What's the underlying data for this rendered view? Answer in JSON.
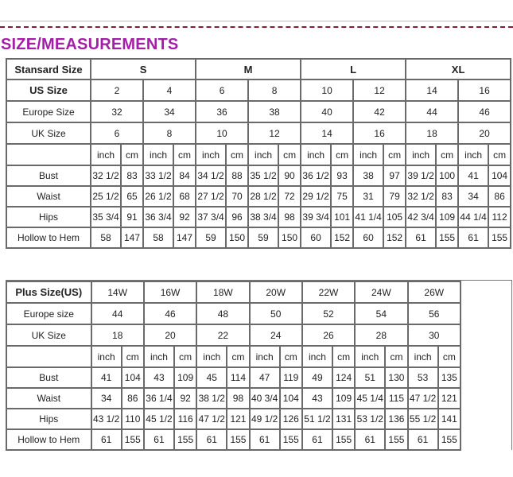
{
  "title": "SIZE/MEASUREMENTS",
  "colors": {
    "title": "#a31fa8",
    "dash_rule": "#8a1a3a",
    "border": "#6a6a6a"
  },
  "standard_table": {
    "header_label": "Stansard Size",
    "groups": [
      "S",
      "M",
      "L",
      "XL"
    ],
    "rows": [
      {
        "label": "US Size",
        "values": [
          "2",
          "4",
          "6",
          "8",
          "10",
          "12",
          "14",
          "16"
        ]
      },
      {
        "label": "Europe Size",
        "values": [
          "32",
          "34",
          "36",
          "38",
          "40",
          "42",
          "44",
          "46"
        ]
      },
      {
        "label": "UK Size",
        "values": [
          "6",
          "8",
          "10",
          "12",
          "14",
          "16",
          "18",
          "20"
        ]
      }
    ],
    "units": [
      "inch",
      "cm"
    ],
    "measurements": [
      {
        "label": "Bust",
        "values": [
          "32 1/2",
          "83",
          "33 1/2",
          "84",
          "34 1/2",
          "88",
          "35 1/2",
          "90",
          "36 1/2",
          "93",
          "38",
          "97",
          "39 1/2",
          "100",
          "41",
          "104"
        ]
      },
      {
        "label": "Waist",
        "values": [
          "25 1/2",
          "65",
          "26 1/2",
          "68",
          "27 1/2",
          "70",
          "28 1/2",
          "72",
          "29 1/2",
          "75",
          "31",
          "79",
          "32 1/2",
          "83",
          "34",
          "86"
        ]
      },
      {
        "label": "Hips",
        "values": [
          "35 3/4",
          "91",
          "36 3/4",
          "92",
          "37 3/4",
          "96",
          "38 3/4",
          "98",
          "39 3/4",
          "101",
          "41 1/4",
          "105",
          "42 3/4",
          "109",
          "44 1/4",
          "112"
        ]
      },
      {
        "label": "Hollow to Hem",
        "values": [
          "58",
          "147",
          "58",
          "147",
          "59",
          "150",
          "59",
          "150",
          "60",
          "152",
          "60",
          "152",
          "61",
          "155",
          "61",
          "155"
        ]
      }
    ]
  },
  "plus_table": {
    "header_label": "Plus Size(US)",
    "sizes": [
      "14W",
      "16W",
      "18W",
      "20W",
      "22W",
      "24W",
      "26W"
    ],
    "rows": [
      {
        "label": "Europe size",
        "values": [
          "44",
          "46",
          "48",
          "50",
          "52",
          "54",
          "56"
        ]
      },
      {
        "label": "UK Size",
        "values": [
          "18",
          "20",
          "22",
          "24",
          "26",
          "28",
          "30"
        ]
      }
    ],
    "units": [
      "inch",
      "cm"
    ],
    "measurements": [
      {
        "label": "Bust",
        "values": [
          "41",
          "104",
          "43",
          "109",
          "45",
          "114",
          "47",
          "119",
          "49",
          "124",
          "51",
          "130",
          "53",
          "135"
        ]
      },
      {
        "label": "Waist",
        "values": [
          "34",
          "86",
          "36 1/4",
          "92",
          "38 1/2",
          "98",
          "40 3/4",
          "104",
          "43",
          "109",
          "45 1/4",
          "115",
          "47 1/2",
          "121"
        ]
      },
      {
        "label": "Hips",
        "values": [
          "43 1/2",
          "110",
          "45 1/2",
          "116",
          "47 1/2",
          "121",
          "49 1/2",
          "126",
          "51 1/2",
          "131",
          "53 1/2",
          "136",
          "55 1/2",
          "141"
        ]
      },
      {
        "label": "Hollow to Hem",
        "values": [
          "61",
          "155",
          "61",
          "155",
          "61",
          "155",
          "61",
          "155",
          "61",
          "155",
          "61",
          "155",
          "61",
          "155"
        ]
      }
    ]
  }
}
